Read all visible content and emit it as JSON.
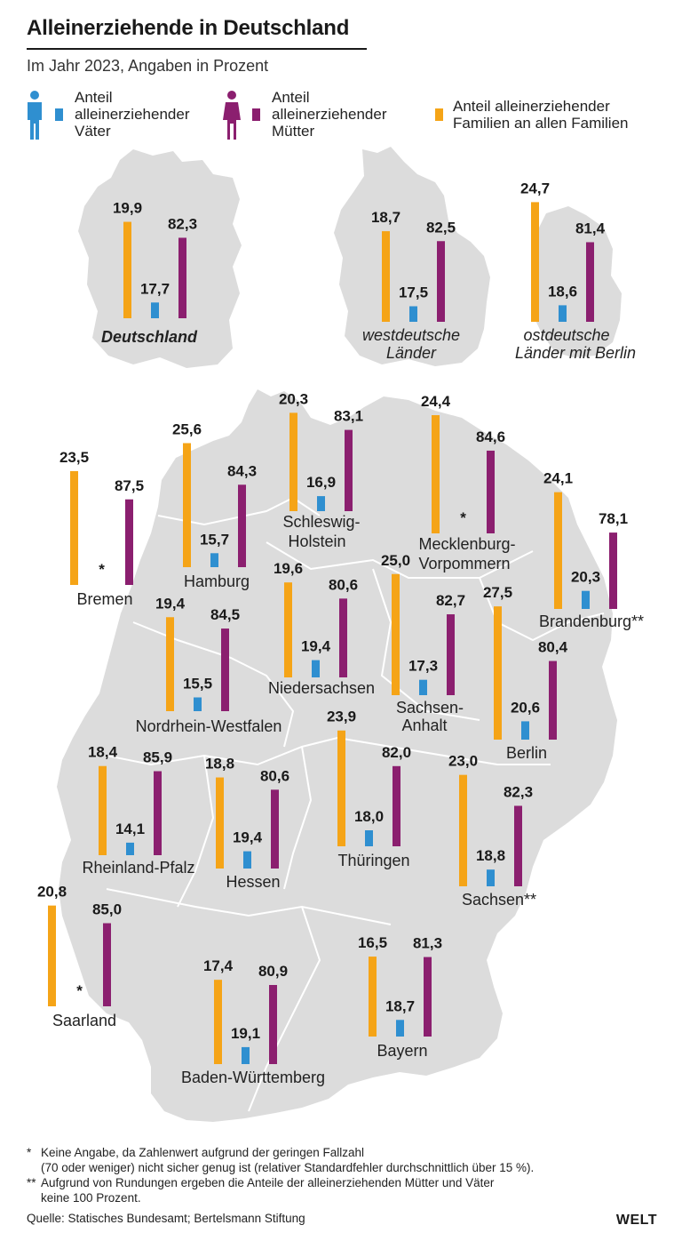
{
  "header": {
    "title": "Alleinerziehende in Deutschland",
    "subtitle": "Im Jahr 2023, Angaben in Prozent"
  },
  "legend": {
    "fathers": "Anteil alleinerziehender Väter",
    "fathers_lines": [
      "Anteil",
      "alleinerziehender",
      "Väter"
    ],
    "mothers": "Anteil alleinerziehender Mütter",
    "mothers_lines": [
      "Anteil",
      "alleinerziehender",
      "Mütter"
    ],
    "families": "Anteil alleinerziehender Familien an allen Familien",
    "families_lines": [
      "Anteil alleinerziehender",
      "Familien an allen Familien"
    ]
  },
  "colors": {
    "families": "#f5a417",
    "fathers": "#2f8fd0",
    "mothers": "#8b1f6f",
    "map": "#dcdcdc",
    "father_icon": "#2f8fd0",
    "mother_icon": "#8b1f6f"
  },
  "chart_data": {
    "type": "bar",
    "series_names": [
      "Anteil alleinerziehender Familien an allen Familien",
      "Anteil alleinerziehender Väter",
      "Anteil alleinerziehender Mütter"
    ],
    "regions": [
      {
        "name": "Deutschland",
        "families": 19.9,
        "fathers": 17.7,
        "mothers": 82.3
      },
      {
        "name": "westdeutsche Länder",
        "families": 18.7,
        "fathers": 17.5,
        "mothers": 82.5
      },
      {
        "name": "ostdeutsche Länder mit Berlin",
        "families": 24.7,
        "fathers": 18.6,
        "mothers": 81.4
      },
      {
        "name": "Bremen",
        "families": 23.5,
        "fathers": null,
        "mothers": 87.5
      },
      {
        "name": "Hamburg",
        "families": 25.6,
        "fathers": 15.7,
        "mothers": 84.3
      },
      {
        "name": "Schleswig-Holstein",
        "families": 20.3,
        "fathers": 16.9,
        "mothers": 83.1
      },
      {
        "name": "Mecklenburg-Vorpommern",
        "families": 24.4,
        "fathers": null,
        "mothers": 84.6
      },
      {
        "name": "Brandenburg**",
        "families": 24.1,
        "fathers": 20.3,
        "mothers": 78.1
      },
      {
        "name": "Niedersachsen",
        "families": 19.6,
        "fathers": 19.4,
        "mothers": 80.6
      },
      {
        "name": "Nordrhein-Westfalen",
        "families": 19.4,
        "fathers": 15.5,
        "mothers": 84.5
      },
      {
        "name": "Sachsen-Anhalt",
        "families": 25.0,
        "fathers": 17.3,
        "mothers": 82.7
      },
      {
        "name": "Berlin",
        "families": 27.5,
        "fathers": 20.6,
        "mothers": 80.4
      },
      {
        "name": "Thüringen",
        "families": 23.9,
        "fathers": 18.0,
        "mothers": 82.0
      },
      {
        "name": "Rheinland-Pfalz",
        "families": 18.4,
        "fathers": 14.1,
        "mothers": 85.9
      },
      {
        "name": "Hessen",
        "families": 18.8,
        "fathers": 19.4,
        "mothers": 80.6
      },
      {
        "name": "Sachsen**",
        "families": 23.0,
        "fathers": 18.8,
        "mothers": 82.3
      },
      {
        "name": "Saarland",
        "families": 20.8,
        "fathers": null,
        "mothers": 85.0
      },
      {
        "name": "Bayern",
        "families": 16.5,
        "fathers": 18.7,
        "mothers": 81.3
      },
      {
        "name": "Baden-Württemberg",
        "families": 17.4,
        "fathers": 19.1,
        "mothers": 80.9
      }
    ],
    "missing_marker": "*"
  },
  "footnotes": {
    "star_mark": "*",
    "star_line1": "Keine Angabe, da Zahlenwert aufgrund der geringen Fallzahl",
    "star_line2": "(70 oder weniger) nicht sicher genug ist (relativer Standardfehler durchschnittlich über 15 %).",
    "dstar_mark": "**",
    "dstar_line1": "Aufgrund von Rundungen ergeben die Anteile der alleinerziehenden Mütter und Väter",
    "dstar_line2": "keine 100 Prozent.",
    "source": "Quelle: Statisches Bundesamt; Bertelsmann Stiftung"
  },
  "brand": "WELT"
}
